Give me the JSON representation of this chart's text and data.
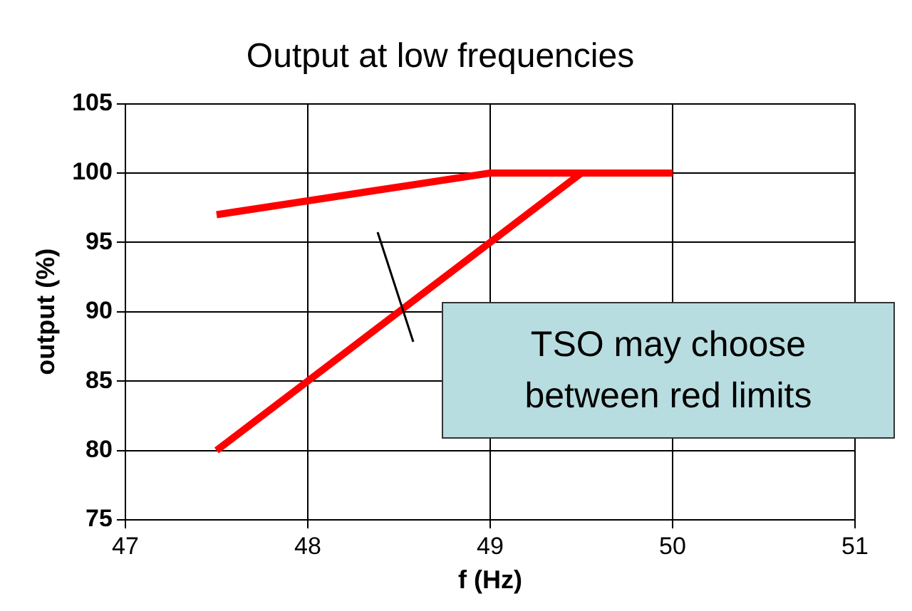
{
  "chart_data": {
    "type": "line",
    "title": "Output at low frequencies",
    "xlabel": "f (Hz)",
    "ylabel": "output (%)",
    "series": [
      {
        "x": [
          47.5,
          49,
          50
        ],
        "values": [
          97,
          100,
          100
        ],
        "color": "#ff0000"
      },
      {
        "x": [
          47.5,
          49.5,
          50
        ],
        "values": [
          80,
          100,
          100
        ],
        "color": "#ff0000"
      }
    ],
    "xlim": [
      47,
      51
    ],
    "xticks": [
      47,
      48,
      49,
      50,
      51
    ],
    "ylim": [
      75,
      105
    ],
    "yticks": [
      75,
      80,
      85,
      90,
      95,
      100,
      105
    ],
    "grid": true,
    "legend": false,
    "marker": "none",
    "line_style": "solid",
    "annotations": [
      "TSO may choose between red limits"
    ]
  }
}
